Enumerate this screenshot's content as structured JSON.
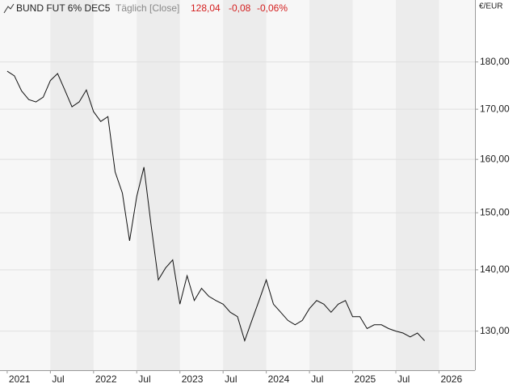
{
  "header": {
    "instrument": "BUND FUT 6% DEC5",
    "interval": "Täglich [Close]",
    "last": "128,04",
    "change": "-0,08",
    "change_pct": "-0,06%"
  },
  "chart_data": {
    "type": "line",
    "unit": "€/EUR",
    "log_y": true,
    "grid": true,
    "color": "#111111",
    "x": [
      "2021-01",
      "2021-02",
      "2021-03",
      "2021-04",
      "2021-05",
      "2021-06",
      "2021-07",
      "2021-08",
      "2021-09",
      "2021-10",
      "2021-11",
      "2021-12",
      "2022-01",
      "2022-02",
      "2022-03",
      "2022-04",
      "2022-05",
      "2022-06",
      "2022-07",
      "2022-08",
      "2022-09",
      "2022-10",
      "2022-11",
      "2022-12",
      "2023-01",
      "2023-02",
      "2023-03",
      "2023-04",
      "2023-05",
      "2023-06",
      "2023-07",
      "2023-08",
      "2023-09",
      "2023-10",
      "2023-11",
      "2023-12",
      "2024-01",
      "2024-02",
      "2024-03",
      "2024-04",
      "2024-05",
      "2024-06",
      "2024-07",
      "2024-08",
      "2024-09",
      "2024-10",
      "2024-11",
      "2024-12",
      "2025-01",
      "2025-02",
      "2025-03",
      "2025-04",
      "2025-05",
      "2025-06",
      "2025-07",
      "2025-08",
      "2025-09",
      "2025-10",
      "2025-11"
    ],
    "values": [
      178,
      177,
      173.8,
      172,
      171.5,
      172.5,
      176,
      177.5,
      174,
      170.5,
      171.5,
      174,
      169.5,
      167.5,
      168.5,
      157.6,
      153.6,
      145,
      153,
      158.5,
      147.7,
      138.3,
      140.3,
      141.7,
      134.3,
      139,
      134.9,
      136.9,
      135.6,
      134.9,
      134.3,
      133,
      132.3,
      128.5,
      131.7,
      134.9,
      138.3,
      134.3,
      133,
      131.7,
      131,
      131.7,
      133.6,
      134.9,
      134.3,
      133,
      134.3,
      134.9,
      132.3,
      132.3,
      130.4,
      131,
      131,
      130.4,
      130,
      129.7,
      129.1,
      129.7,
      128.5
    ],
    "xlim": [
      "2020-12",
      "2026-06"
    ],
    "xticks": [
      {
        "value": "2021-01",
        "label": "2021"
      },
      {
        "value": "2021-07",
        "label": "Jul"
      },
      {
        "value": "2022-01",
        "label": "2022"
      },
      {
        "value": "2022-07",
        "label": "Jul"
      },
      {
        "value": "2023-01",
        "label": "2023"
      },
      {
        "value": "2023-07",
        "label": "Jul"
      },
      {
        "value": "2024-01",
        "label": "2024"
      },
      {
        "value": "2024-07",
        "label": "Jul"
      },
      {
        "value": "2025-01",
        "label": "2025"
      },
      {
        "value": "2025-07",
        "label": "Jul"
      },
      {
        "value": "2026-01",
        "label": "2026"
      }
    ],
    "ylim": [
      124,
      194
    ],
    "yticks": [
      {
        "value": 130,
        "label": "130,00"
      },
      {
        "value": 140,
        "label": "140,00"
      },
      {
        "value": 150,
        "label": "150,00"
      },
      {
        "value": 160,
        "label": "160,00"
      },
      {
        "value": 170,
        "label": "170,00"
      },
      {
        "value": 180,
        "label": "180,00"
      }
    ]
  }
}
